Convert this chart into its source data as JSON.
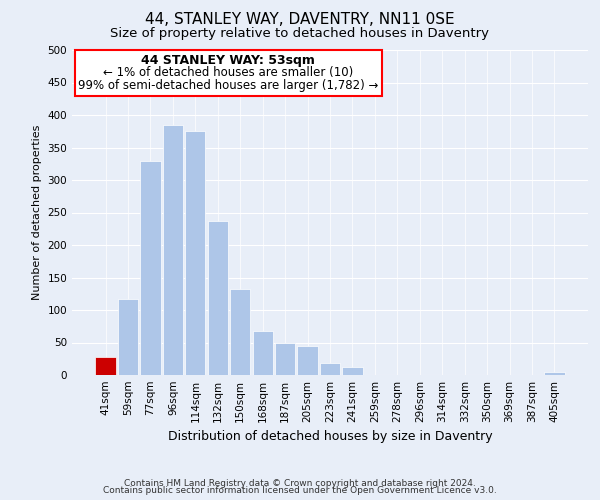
{
  "title": "44, STANLEY WAY, DAVENTRY, NN11 0SE",
  "subtitle": "Size of property relative to detached houses in Daventry",
  "xlabel": "Distribution of detached houses by size in Daventry",
  "ylabel": "Number of detached properties",
  "bar_labels": [
    "41sqm",
    "59sqm",
    "77sqm",
    "96sqm",
    "114sqm",
    "132sqm",
    "150sqm",
    "168sqm",
    "187sqm",
    "205sqm",
    "223sqm",
    "241sqm",
    "259sqm",
    "278sqm",
    "296sqm",
    "314sqm",
    "332sqm",
    "350sqm",
    "369sqm",
    "387sqm",
    "405sqm"
  ],
  "bar_heights": [
    28,
    117,
    330,
    385,
    375,
    237,
    133,
    68,
    50,
    45,
    18,
    12,
    0,
    0,
    0,
    0,
    0,
    0,
    0,
    0,
    5
  ],
  "highlight_bar_index": 0,
  "highlight_color": "#cc0000",
  "normal_color": "#aec6e8",
  "background_color": "#e8eef8",
  "ylim": [
    0,
    500
  ],
  "yticks": [
    0,
    50,
    100,
    150,
    200,
    250,
    300,
    350,
    400,
    450,
    500
  ],
  "annotation_title": "44 STANLEY WAY: 53sqm",
  "annotation_line1": "← 1% of detached houses are smaller (10)",
  "annotation_line2": "99% of semi-detached houses are larger (1,782) →",
  "footer_line1": "Contains HM Land Registry data © Crown copyright and database right 2024.",
  "footer_line2": "Contains public sector information licensed under the Open Government Licence v3.0.",
  "title_fontsize": 11,
  "subtitle_fontsize": 9.5,
  "xlabel_fontsize": 9,
  "ylabel_fontsize": 8,
  "tick_fontsize": 7.5,
  "footer_fontsize": 6.5,
  "ann_title_fontsize": 9,
  "ann_body_fontsize": 8.5
}
